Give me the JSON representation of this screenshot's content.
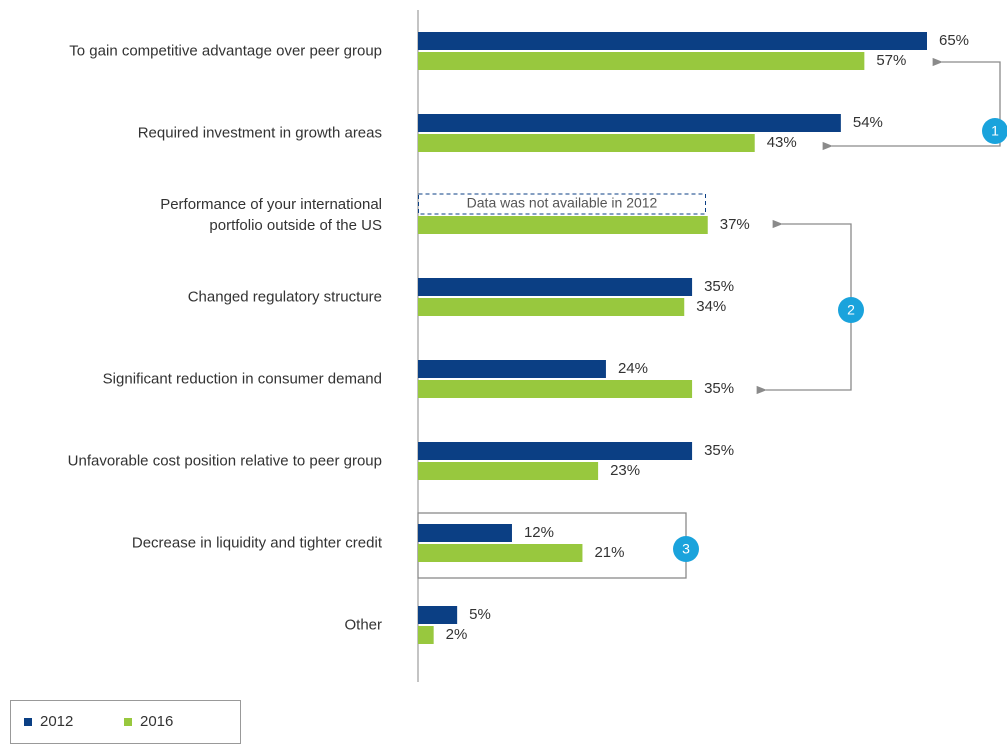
{
  "chart_data": {
    "type": "bar",
    "orientation": "horizontal",
    "categories": [
      "To gain competitive advantage over peer group",
      "Required investment in growth areas",
      "Performance of your international\nportfolio outside of the US",
      "Changed regulatory structure",
      "Significant reduction in consumer demand",
      "Unfavorable cost position relative to peer group",
      "Decrease in liquidity and tighter credit",
      "Other"
    ],
    "series": [
      {
        "name": "2012",
        "color": "#0b3f84",
        "values": [
          65,
          54,
          null,
          35,
          24,
          35,
          12,
          5
        ],
        "value_labels": [
          "65%",
          "54%",
          null,
          "35%",
          "24%",
          "35%",
          "12%",
          "5%"
        ]
      },
      {
        "name": "2016",
        "color": "#98c83e",
        "values": [
          57,
          43,
          37,
          34,
          35,
          23,
          21,
          2
        ],
        "value_labels": [
          "57%",
          "43%",
          "37%",
          "34%",
          "35%",
          "23%",
          "21%",
          "2%"
        ]
      }
    ],
    "xlim": [
      0,
      65
    ],
    "annotations": [
      {
        "text": "Data was not available in 2012",
        "series": 0,
        "category": 2
      }
    ],
    "callouts": [
      "1",
      "2",
      "3"
    ],
    "callout_color": "#1aa3dc"
  }
}
